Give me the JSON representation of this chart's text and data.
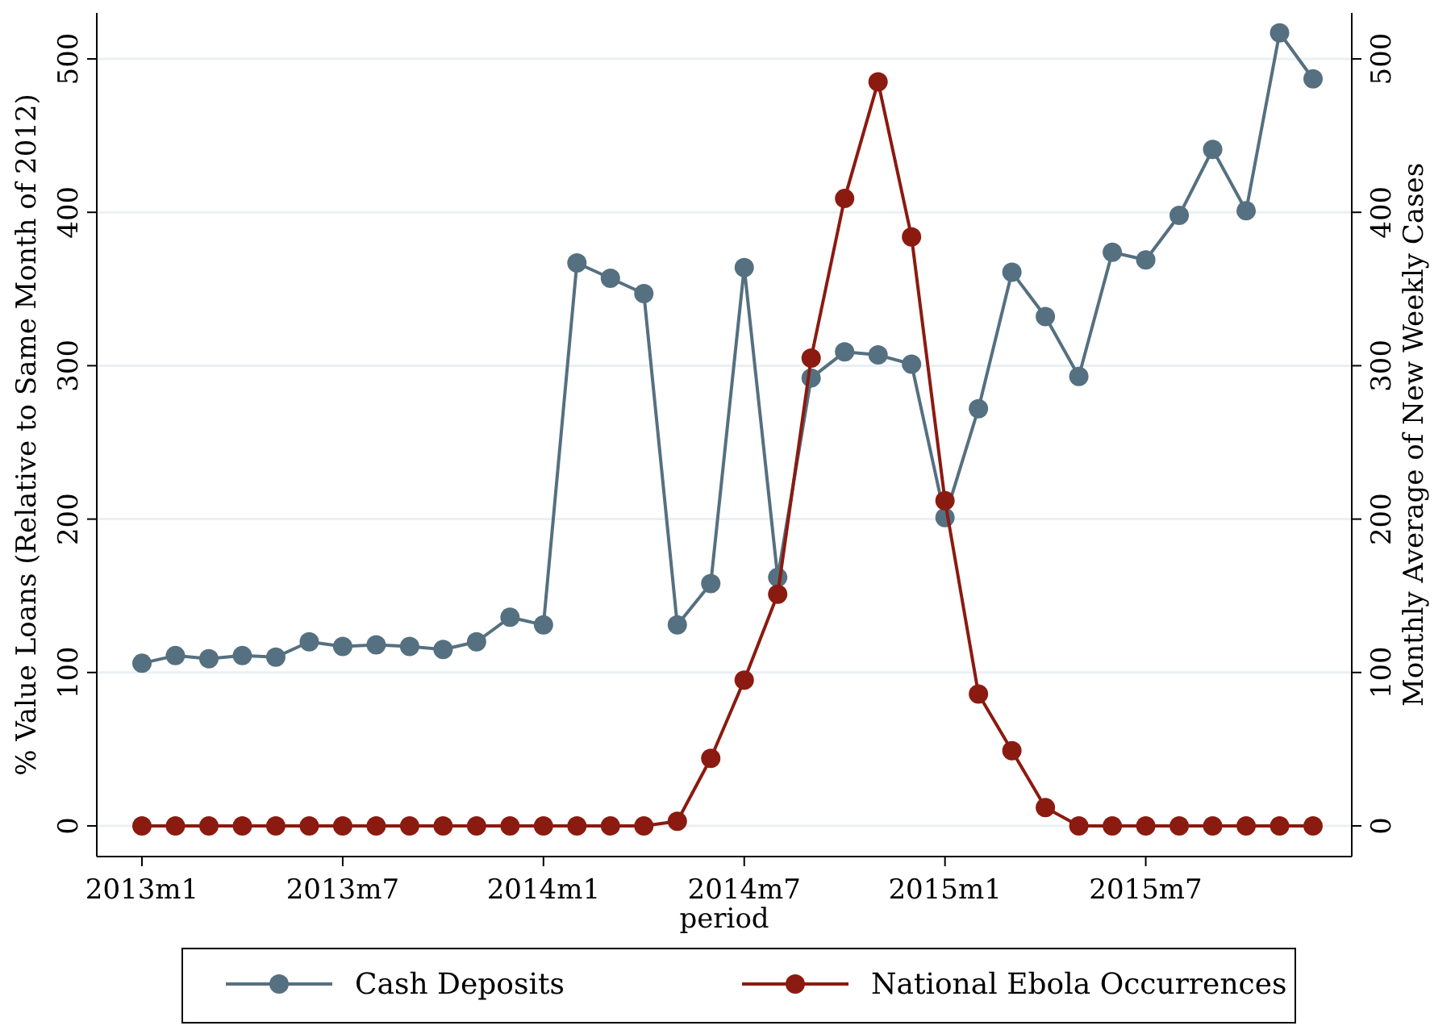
{
  "chart_data": {
    "type": "line",
    "xlabel": "period",
    "ylabel": "% Value Loans (Relative to Same Month of 2012)",
    "y2label": "Monthly Average of New Weekly Cases",
    "categories": [
      "2013m1",
      null,
      null,
      null,
      null,
      null,
      "2013m7",
      null,
      null,
      null,
      null,
      null,
      "2014m1",
      null,
      null,
      null,
      null,
      null,
      "2014m7",
      null,
      null,
      null,
      null,
      null,
      "2015m1",
      null,
      null,
      null,
      null,
      null,
      "2015m7",
      null,
      null,
      null,
      null,
      null
    ],
    "series": [
      {
        "name": "Cash Deposits",
        "color": "#557080",
        "values": [
          106,
          111,
          109,
          111,
          110,
          120,
          117,
          118,
          117,
          115,
          120,
          136,
          131,
          367,
          357,
          347,
          131,
          158,
          364,
          162,
          292,
          309,
          307,
          301,
          201,
          272,
          361,
          332,
          293,
          374,
          369,
          398,
          441,
          401,
          517,
          487
        ]
      },
      {
        "name": "National Ebola Occurrences",
        "color": "#8b1a10",
        "axis": "y2",
        "values": [
          0,
          0,
          0,
          0,
          0,
          0,
          0,
          0,
          0,
          0,
          0,
          0,
          0,
          0,
          0,
          0,
          3,
          44,
          95,
          151,
          305,
          409,
          485,
          384,
          212,
          86,
          49,
          12,
          0,
          0,
          0,
          0,
          0,
          0,
          0,
          0
        ]
      }
    ],
    "ylim": [
      -20,
      530
    ],
    "yticks": [
      0,
      100,
      200,
      300,
      400,
      500
    ],
    "y2lim": [
      -20,
      530
    ],
    "y2ticks": [
      0,
      100,
      200,
      300,
      400,
      500
    ],
    "grid": "y",
    "legend": "bottom",
    "marker": "circle",
    "line_style": "solid"
  }
}
